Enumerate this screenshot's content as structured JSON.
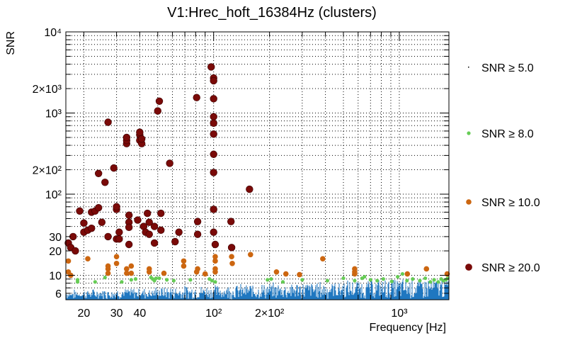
{
  "chart_data": {
    "type": "scatter",
    "title": "V1:Hrec_hoft_16384Hz (clusters)",
    "xlabel": "Frequency [Hz]",
    "ylabel": "SNR",
    "x_scale": "log",
    "y_scale": "log",
    "xlim": [
      16,
      1850
    ],
    "ylim": [
      5,
      10000
    ],
    "grid": true,
    "legend_position": "right",
    "x_ticks": [
      {
        "label": "20",
        "value": 20
      },
      {
        "label": "30",
        "value": 30
      },
      {
        "label": "40",
        "value": 40
      },
      {
        "label": "10²",
        "value": 100
      },
      {
        "label": "2×10²",
        "value": 200
      },
      {
        "label": "10³",
        "value": 1000
      }
    ],
    "y_ticks": [
      {
        "label": "6",
        "value": 6
      },
      {
        "label": "10",
        "value": 10
      },
      {
        "label": "20",
        "value": 20
      },
      {
        "label": "30",
        "value": 30
      },
      {
        "label": "10²",
        "value": 100
      },
      {
        "label": "2×10²",
        "value": 200
      },
      {
        "label": "10³",
        "value": 1000
      },
      {
        "label": "2×10³",
        "value": 2000
      },
      {
        "label": "10⁴",
        "value": 10000
      }
    ],
    "series": [
      {
        "name": "SNR ≥ 5.0",
        "color": "#1f77c0",
        "marker": "dense-strip",
        "x_range": [
          16,
          1850
        ],
        "y_range": [
          5,
          9
        ]
      },
      {
        "name": "SNR ≥ 8.0",
        "color": "#66cc55",
        "marker": "circle-small",
        "points": [
          [
            18.5,
            8.8
          ],
          [
            18.5,
            8.3
          ],
          [
            23,
            8.3
          ],
          [
            26,
            9.4
          ],
          [
            32,
            8.3
          ],
          [
            36,
            8.8
          ],
          [
            38,
            9.0
          ],
          [
            46,
            9.4
          ],
          [
            47,
            9.0
          ],
          [
            48,
            8.6
          ],
          [
            49,
            9.2
          ],
          [
            51,
            9.2
          ],
          [
            56,
            8.8
          ],
          [
            61,
            8.6
          ],
          [
            75,
            8.8
          ],
          [
            95,
            9.0
          ],
          [
            98,
            8.6
          ],
          [
            102,
            8.3
          ],
          [
            195,
            8.8
          ],
          [
            204,
            9.0
          ],
          [
            236,
            8.3
          ],
          [
            300,
            8.8
          ],
          [
            410,
            8.6
          ],
          [
            500,
            9.2
          ],
          [
            575,
            8.6
          ],
          [
            630,
            9.2
          ],
          [
            650,
            9.6
          ],
          [
            700,
            8.8
          ],
          [
            760,
            8.6
          ],
          [
            820,
            9.0
          ],
          [
            910,
            8.4
          ],
          [
            980,
            9.6
          ],
          [
            1040,
            10.4
          ],
          [
            1100,
            8.6
          ],
          [
            1180,
            9.0
          ],
          [
            1290,
            8.6
          ],
          [
            1380,
            9.2
          ],
          [
            1470,
            8.3
          ],
          [
            1540,
            8.8
          ],
          [
            1620,
            8.3
          ],
          [
            1680,
            9.0
          ],
          [
            1730,
            8.6
          ],
          [
            1780,
            8.8
          ],
          [
            1820,
            9.2
          ]
        ]
      },
      {
        "name": "SNR ≥ 10.0",
        "color": "#cc6610",
        "marker": "circle-medium",
        "points": [
          [
            16.5,
            15
          ],
          [
            16.5,
            11
          ],
          [
            17,
            10
          ],
          [
            21,
            16
          ],
          [
            27,
            13
          ],
          [
            27,
            12
          ],
          [
            27,
            10.6
          ],
          [
            30,
            14
          ],
          [
            30,
            17
          ],
          [
            34,
            10.6
          ],
          [
            34,
            12
          ],
          [
            36,
            10.6
          ],
          [
            36,
            13
          ],
          [
            45,
            11
          ],
          [
            45,
            12
          ],
          [
            54,
            10.6
          ],
          [
            69,
            15
          ],
          [
            69,
            13
          ],
          [
            81,
            11
          ],
          [
            82,
            12
          ],
          [
            90,
            10.4
          ],
          [
            102,
            17
          ],
          [
            102,
            15
          ],
          [
            102,
            12
          ],
          [
            102,
            11
          ],
          [
            125,
            17
          ],
          [
            126,
            14
          ],
          [
            158,
            18
          ],
          [
            218,
            11
          ],
          [
            245,
            10.4
          ],
          [
            290,
            10.2
          ],
          [
            387,
            16
          ],
          [
            575,
            12
          ],
          [
            575,
            10.4
          ],
          [
            575,
            11
          ],
          [
            1105,
            10.4
          ],
          [
            1400,
            12
          ],
          [
            1810,
            10.4
          ]
        ]
      },
      {
        "name": "SNR ≥ 20.0",
        "color": "#7a0a08",
        "marker": "circle-large",
        "points": [
          [
            16.5,
            25
          ],
          [
            17,
            22
          ],
          [
            17.5,
            30
          ],
          [
            18,
            20
          ],
          [
            19,
            62
          ],
          [
            20,
            34
          ],
          [
            20,
            44
          ],
          [
            21,
            36
          ],
          [
            22,
            60
          ],
          [
            22,
            38
          ],
          [
            23,
            62
          ],
          [
            24,
            68
          ],
          [
            24,
            180
          ],
          [
            25,
            45
          ],
          [
            26,
            140
          ],
          [
            27,
            770
          ],
          [
            27,
            30
          ],
          [
            29,
            210
          ],
          [
            30,
            65
          ],
          [
            30,
            70
          ],
          [
            31,
            34
          ],
          [
            30,
            28
          ],
          [
            31,
            28
          ],
          [
            34,
            420
          ],
          [
            34,
            460
          ],
          [
            34,
            500
          ],
          [
            35,
            55
          ],
          [
            35,
            45
          ],
          [
            35,
            39
          ],
          [
            35,
            24
          ],
          [
            39,
            48
          ],
          [
            40,
            540
          ],
          [
            40,
            580
          ],
          [
            40,
            460
          ],
          [
            41,
            420
          ],
          [
            41,
            480
          ],
          [
            42,
            40
          ],
          [
            43,
            34
          ],
          [
            44,
            58
          ],
          [
            45,
            45
          ],
          [
            45,
            32
          ],
          [
            48,
            25
          ],
          [
            48,
            40
          ],
          [
            50,
            1060
          ],
          [
            51,
            1400
          ],
          [
            52,
            58
          ],
          [
            52,
            36
          ],
          [
            58,
            240
          ],
          [
            62,
            26
          ],
          [
            65,
            34
          ],
          [
            81,
            1550
          ],
          [
            82,
            46
          ],
          [
            82,
            32
          ],
          [
            97,
            3700
          ],
          [
            100,
            2700
          ],
          [
            100,
            2500
          ],
          [
            100,
            1500
          ],
          [
            100,
            900
          ],
          [
            100,
            750
          ],
          [
            100,
            550
          ],
          [
            100,
            310
          ],
          [
            100,
            185
          ],
          [
            100,
            65
          ],
          [
            100,
            34
          ],
          [
            102,
            24
          ],
          [
            124,
            46
          ],
          [
            125,
            22
          ],
          [
            156,
            115
          ]
        ]
      }
    ]
  }
}
